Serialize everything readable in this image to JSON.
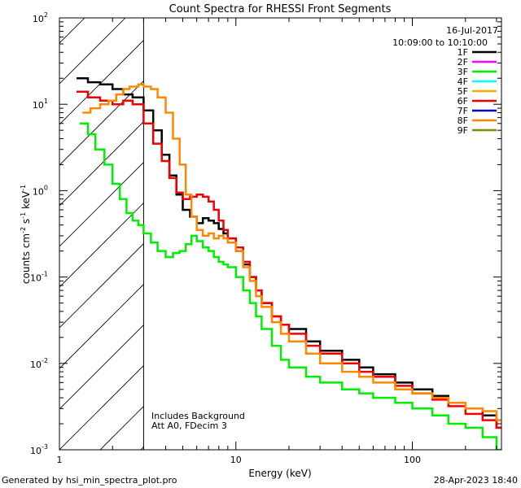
{
  "chart_data": {
    "type": "line",
    "title": "Count Spectra for RHESSI Front Segments",
    "xlabel": "Energy (keV)",
    "ylabel_parts": [
      "counts cm",
      "-2",
      " s",
      "-1",
      " keV",
      "-1"
    ],
    "x_scale": "log",
    "y_scale": "log",
    "xlim": [
      1,
      320
    ],
    "ylim": [
      0.001,
      100
    ],
    "x_ticks": [
      {
        "v": 1,
        "label": "1"
      },
      {
        "v": 10,
        "label": "10"
      },
      {
        "v": 100,
        "label": "100"
      }
    ],
    "y_ticks": [
      {
        "v": 100,
        "base": "10",
        "exp": "2"
      },
      {
        "v": 10,
        "base": "10",
        "exp": "1"
      },
      {
        "v": 1,
        "base": "10",
        "exp": "0"
      },
      {
        "v": 0.1,
        "base": "10",
        "exp": "-1"
      },
      {
        "v": 0.01,
        "base": "10",
        "exp": "-2"
      },
      {
        "v": 0.001,
        "base": "10",
        "exp": "-3"
      }
    ],
    "attenuated_region_max_keV": 3,
    "date": "16-Jul-2017",
    "time_range": "10:09:00 to 10:10:00",
    "notes": [
      "Includes Background",
      "Att A0, FDecim 3"
    ],
    "legend": [
      {
        "name": "1F",
        "color": "#000000"
      },
      {
        "name": "2F",
        "color": "#ff00ff"
      },
      {
        "name": "3F",
        "color": "#00ee00"
      },
      {
        "name": "4F",
        "color": "#00ffff"
      },
      {
        "name": "5F",
        "color": "#ffaa00"
      },
      {
        "name": "6F",
        "color": "#ee0000"
      },
      {
        "name": "7F",
        "color": "#0000cc"
      },
      {
        "name": "8F",
        "color": "#ff8800"
      },
      {
        "name": "9F",
        "color": "#888800"
      }
    ],
    "series": [
      {
        "name": "1F",
        "color": "#000000",
        "x": [
          1.25,
          1.45,
          1.7,
          2.0,
          2.3,
          2.6,
          3.0,
          3.4,
          3.8,
          4.2,
          4.6,
          5.0,
          5.5,
          6.0,
          6.5,
          7.0,
          7.5,
          8.0,
          8.5,
          9.0,
          10,
          11,
          12,
          13,
          14,
          16,
          18,
          20,
          25,
          30,
          40,
          50,
          60,
          80,
          100,
          130,
          160,
          200,
          250,
          300
        ],
        "y": [
          20,
          18,
          17,
          15,
          13,
          12,
          8.5,
          5,
          2.6,
          1.5,
          0.9,
          0.6,
          0.5,
          0.42,
          0.48,
          0.45,
          0.42,
          0.36,
          0.32,
          0.28,
          0.2,
          0.14,
          0.1,
          0.07,
          0.05,
          0.035,
          0.028,
          0.025,
          0.018,
          0.014,
          0.011,
          0.009,
          0.0075,
          0.006,
          0.005,
          0.0042,
          0.0035,
          0.003,
          0.0025,
          0.0018
        ]
      },
      {
        "name": "3F",
        "color": "#00ee00",
        "x": [
          1.3,
          1.45,
          1.6,
          1.8,
          2.0,
          2.2,
          2.4,
          2.6,
          2.8,
          3.0,
          3.3,
          3.6,
          4.0,
          4.4,
          4.8,
          5.2,
          5.6,
          6.0,
          6.5,
          7.0,
          7.5,
          8.0,
          8.5,
          9.0,
          10,
          11,
          12,
          13,
          14,
          16,
          18,
          20,
          25,
          30,
          40,
          50,
          60,
          80,
          100,
          130,
          160,
          200,
          250,
          300
        ],
        "y": [
          6,
          4.5,
          3,
          2,
          1.2,
          0.8,
          0.55,
          0.45,
          0.4,
          0.32,
          0.25,
          0.2,
          0.17,
          0.19,
          0.2,
          0.24,
          0.3,
          0.26,
          0.22,
          0.2,
          0.17,
          0.15,
          0.14,
          0.13,
          0.1,
          0.07,
          0.05,
          0.035,
          0.025,
          0.016,
          0.011,
          0.009,
          0.007,
          0.006,
          0.005,
          0.0045,
          0.004,
          0.0035,
          0.003,
          0.0025,
          0.002,
          0.0018,
          0.0014,
          0.001
        ]
      },
      {
        "name": "6F",
        "color": "#ee0000",
        "x": [
          1.25,
          1.45,
          1.7,
          2.0,
          2.3,
          2.6,
          3.0,
          3.4,
          3.8,
          4.2,
          4.6,
          5.0,
          5.5,
          6.0,
          6.5,
          7.0,
          7.5,
          8.0,
          8.5,
          9.0,
          10,
          11,
          12,
          13,
          14,
          16,
          18,
          20,
          25,
          30,
          40,
          50,
          60,
          80,
          100,
          130,
          160,
          200,
          250,
          300
        ],
        "y": [
          14,
          12,
          11,
          10,
          11,
          10,
          6,
          3.5,
          2.2,
          1.4,
          0.95,
          0.8,
          0.85,
          0.9,
          0.85,
          0.75,
          0.6,
          0.45,
          0.35,
          0.28,
          0.22,
          0.15,
          0.1,
          0.07,
          0.05,
          0.035,
          0.028,
          0.022,
          0.016,
          0.013,
          0.01,
          0.008,
          0.007,
          0.0055,
          0.0045,
          0.0038,
          0.0032,
          0.0026,
          0.0022,
          0.0018
        ]
      },
      {
        "name": "8F",
        "color": "#ff8800",
        "x": [
          1.35,
          1.5,
          1.7,
          1.9,
          2.1,
          2.3,
          2.5,
          2.8,
          3.0,
          3.3,
          3.6,
          4.0,
          4.4,
          4.8,
          5.2,
          5.6,
          6.0,
          6.5,
          7.0,
          7.5,
          8.0,
          8.5,
          9.0,
          10,
          11,
          12,
          13,
          14,
          16,
          18,
          20,
          25,
          30,
          40,
          50,
          60,
          80,
          100,
          130,
          160,
          200,
          250,
          300
        ],
        "y": [
          8,
          9,
          10,
          11,
          13,
          15,
          16,
          17,
          16,
          15,
          12,
          8,
          4,
          2,
          0.9,
          0.5,
          0.35,
          0.3,
          0.32,
          0.28,
          0.3,
          0.28,
          0.25,
          0.2,
          0.13,
          0.09,
          0.06,
          0.045,
          0.03,
          0.022,
          0.018,
          0.013,
          0.01,
          0.008,
          0.007,
          0.006,
          0.005,
          0.0045,
          0.004,
          0.0035,
          0.003,
          0.0028,
          0.0022
        ]
      }
    ]
  },
  "footer": {
    "generated_by": "Generated by hsi_min_spectra_plot.pro",
    "timestamp": "28-Apr-2023 18:40"
  }
}
